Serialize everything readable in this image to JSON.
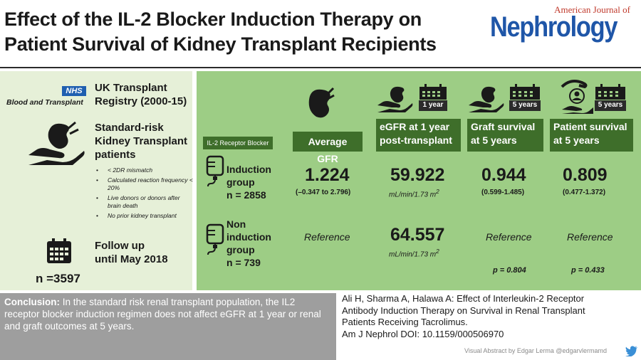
{
  "title": {
    "line1": "Effect of the IL-2 Blocker Induction Therapy on",
    "line2": "Patient Survival of Kidney Transplant Recipients"
  },
  "journal": {
    "prefix": "American Journal of",
    "name": "Nephrology"
  },
  "left": {
    "nhs_label": "NHS",
    "bat_label": "Blood and Transplant",
    "registry_line1": "UK Transplant",
    "registry_line2": "Registry (2000-15)",
    "risk_line1": "Standard-risk",
    "risk_line2": "Kidney Transplant",
    "risk_line3": "patients",
    "criteria": [
      "< 2DR mismatch",
      "Calculated reaction frequency < 20%",
      "Live donors or donors after brain death",
      "No prior kidney transplant"
    ],
    "followup_line1": "Follow up",
    "followup_line2": "until May 2018",
    "n_total": "n =3597"
  },
  "table": {
    "row_header": "IL-2 Receptor Blocker",
    "headers": {
      "gfr": "Average GFR",
      "egfr_line1": "eGFR at 1 year",
      "egfr_line2": "post-transplant",
      "graft_line1": "Graft survival",
      "graft_line2": "at 5 years",
      "patient_line1": "Patient survival",
      "patient_line2": "at 5 years"
    },
    "badges": {
      "egfr": "1 year",
      "graft": "5 years",
      "patient": "5 years"
    },
    "induction": {
      "label_line1": "Induction",
      "label_line2": "group",
      "n": "n = 2858",
      "gfr": "1.224",
      "gfr_ci": "(–0.347 to 2.796)",
      "egfr": "59.922",
      "egfr_unit": "mL/min/1.73 m",
      "egfr_unit_sup": "2",
      "graft": "0.944",
      "graft_ci": "(0.599-1.485)",
      "patient": "0.809",
      "patient_ci": "(0.477-1.372)"
    },
    "non_induction": {
      "label_line1": "Non",
      "label_line2": "induction",
      "label_line3": "group",
      "n": "n = 739",
      "gfr": "Reference",
      "egfr": "64.557",
      "egfr_unit": "mL/min/1.73 m",
      "egfr_unit_sup": "2",
      "graft": "Reference",
      "patient": "Reference"
    },
    "p_values": {
      "graft": "p = 0.804",
      "patient": "p = 0.433"
    }
  },
  "conclusion": {
    "label": "Conclusion:",
    "text": " In the standard risk renal transplant population, the IL2 receptor blocker induction regimen does not affect eGFR at 1 year or renal and graft outcomes at 5 years."
  },
  "citation": {
    "line1": "Ali H, Sharma A, Halawa A: Effect of Interleukin-2 Receptor",
    "line2": "Antibody Induction Therapy on Survival in Renal Transplant",
    "line3": "Patients Receiving Tacrolimus.",
    "line4": "Am J Nephrol DOI: 10.1159/000506970"
  },
  "credit": "Visual Abstract by Edgar Lerma @edgarvlermamd",
  "colors": {
    "panel_green": "#9dcd85",
    "dark_green": "#3e6e2a",
    "light_green": "#e6f0d8",
    "brand_blue": "#1f56a8"
  }
}
